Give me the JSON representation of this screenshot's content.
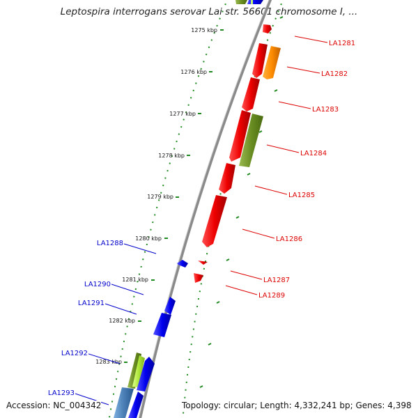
{
  "title": "Leptospira interrogans serovar Lai str. 56601 chromosome I, ...",
  "footer": {
    "accession": "Accession: NC_004342",
    "topology": "Topology: circular; Length: 4,332,241 bp; Genes: 4,398"
  },
  "colors": {
    "backbone": "#8a8a8a",
    "tick_outer": "#1f8a1f",
    "forward_label": "#dd0000",
    "reverse_label": "#0000cc",
    "red_gene": "#ee0000",
    "blue_gene": "#0000ee",
    "orange_gene": "#ff8c00",
    "olive_gene": "#6b8e23",
    "lime_gene": "#aee83a",
    "steelblue_gene": "#4a7fb5"
  },
  "kbp_ticks": [
    "1275 kbp",
    "1276 kbp",
    "1277 kbp",
    "1278 kbp",
    "1279 kbp",
    "1280 kbp",
    "1281 kbp",
    "1282 kbp",
    "1283 kbp"
  ],
  "genes_right": [
    "LA1281",
    "LA1282",
    "LA1283",
    "LA1284",
    "LA1285",
    "LA1286",
    "LA1287",
    "LA1289"
  ],
  "genes_left": [
    "LA1288",
    "LA1290",
    "LA1291",
    "LA1292",
    "LA1293"
  ]
}
